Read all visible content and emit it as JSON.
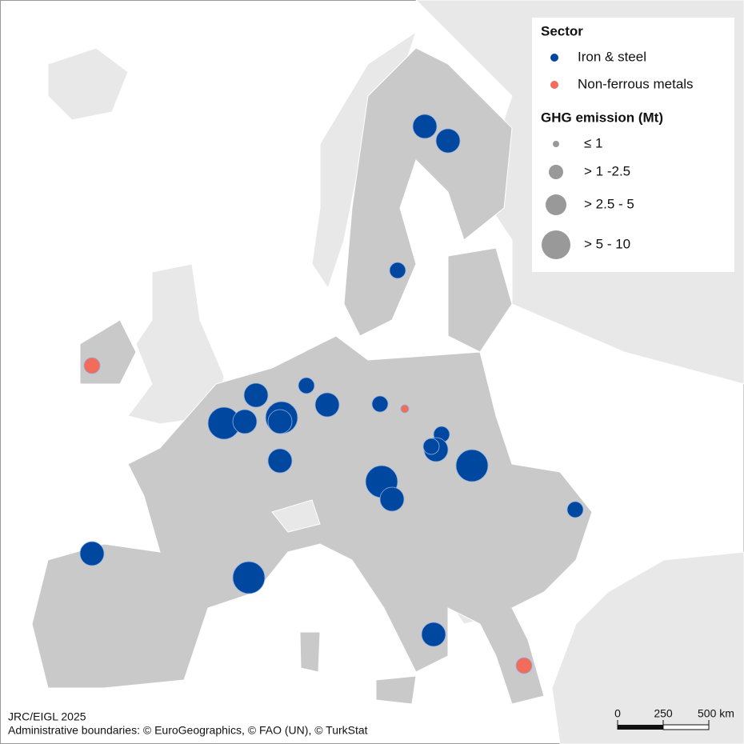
{
  "legend": {
    "sector_title": "Sector",
    "sectors": [
      {
        "label": "Iron & steel",
        "color": "#0047a0"
      },
      {
        "label": "Non-ferrous metals",
        "color": "#f26b5b"
      }
    ],
    "size_title": "GHG emission (Mt)",
    "sizes": [
      "≤ 1",
      "> 1 -2.5",
      "> 2.5 - 5",
      "> 5 - 10"
    ]
  },
  "points": [
    {
      "sector": "Iron & steel",
      "size": "> 2.5 - 5"
    },
    {
      "sector": "Iron & steel",
      "size": "> 2.5 - 5"
    },
    {
      "sector": "Iron & steel",
      "size": "> 1 -2.5"
    },
    {
      "sector": "Non-ferrous metals",
      "size": "> 1 -2.5"
    },
    {
      "sector": "Iron & steel",
      "size": "> 1 -2.5"
    },
    {
      "sector": "Iron & steel",
      "size": "> 2.5 - 5"
    },
    {
      "sector": "Iron & steel",
      "size": "> 2.5 - 5"
    },
    {
      "sector": "Iron & steel",
      "size": "> 1 -2.5"
    },
    {
      "sector": "Non-ferrous metals",
      "size": "≤ 1"
    },
    {
      "sector": "Iron & steel",
      "size": "> 5 - 10"
    },
    {
      "sector": "Iron & steel",
      "size": "> 2.5 - 5"
    },
    {
      "sector": "Iron & steel",
      "size": "> 5 - 10"
    },
    {
      "sector": "Iron & steel",
      "size": "> 2.5 - 5"
    },
    {
      "sector": "Iron & steel",
      "size": "> 2.5 - 5"
    },
    {
      "sector": "Iron & steel",
      "size": "> 1 -2.5"
    },
    {
      "sector": "Iron & steel",
      "size": "> 2.5 - 5"
    },
    {
      "sector": "Iron & steel",
      "size": "> 1 -2.5"
    },
    {
      "sector": "Iron & steel",
      "size": "> 5 - 10"
    },
    {
      "sector": "Iron & steel",
      "size": "> 5 - 10"
    },
    {
      "sector": "Iron & steel",
      "size": "> 2.5 - 5"
    },
    {
      "sector": "Iron & steel",
      "size": "> 1 -2.5"
    },
    {
      "sector": "Iron & steel",
      "size": "> 2.5 - 5"
    },
    {
      "sector": "Iron & steel",
      "size": "> 5 - 10"
    },
    {
      "sector": "Iron & steel",
      "size": "> 2.5 - 5"
    },
    {
      "sector": "Non-ferrous metals",
      "size": "> 1 -2.5"
    }
  ],
  "footer": {
    "source": "JRC/EIGL 2025",
    "attribution": "Administrative boundaries: © EuroGeographics, © FAO (UN), © TurkStat"
  },
  "scale_bar": {
    "ticks": [
      0,
      250,
      {
        "value": 500,
        "label": "500 km"
      }
    ]
  }
}
